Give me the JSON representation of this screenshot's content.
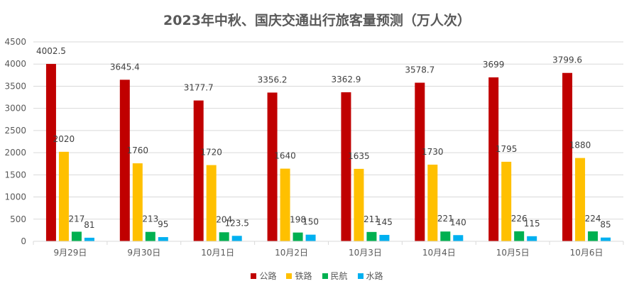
{
  "chart_data": {
    "type": "bar",
    "title": "2023年中秋、国庆交通出行旅客量预测（万人次）",
    "categories": [
      "9月29日",
      "9月30日",
      "10月1日",
      "10月2日",
      "10月3日",
      "10月4日",
      "10月5日",
      "10月6日"
    ],
    "series": [
      {
        "name": "公路",
        "color": "#C00000",
        "values": [
          4002.5,
          3645.4,
          3177.7,
          3356.2,
          3362.9,
          3578.7,
          3699,
          3799.6
        ],
        "labels": [
          "4002.5",
          "3645.4",
          "3177.7",
          "3356.2",
          "3362.9",
          "3578.7",
          "3699",
          "3799.6"
        ]
      },
      {
        "name": "铁路",
        "color": "#FFC000",
        "values": [
          2020,
          1760,
          1720,
          1640,
          1635,
          1730,
          1795,
          1880
        ],
        "labels": [
          "2020",
          "1760",
          "1720",
          "1640",
          "1635",
          "1730",
          "1795",
          "1880"
        ]
      },
      {
        "name": "民航",
        "color": "#00B050",
        "values": [
          217,
          213,
          204,
          198,
          211,
          221,
          226,
          224
        ],
        "labels": [
          "217",
          "213",
          "204",
          "198",
          "211",
          "221",
          "226",
          "224"
        ]
      },
      {
        "name": "水路",
        "color": "#00B0F0",
        "values": [
          81,
          95,
          123.5,
          150,
          145,
          140,
          115,
          85
        ],
        "labels": [
          "81",
          "95",
          "123.5",
          "150",
          "145",
          "140",
          "115",
          "85"
        ]
      }
    ],
    "yticks": [
      "0",
      "500",
      "1000",
      "1500",
      "2000",
      "2500",
      "3000",
      "3500",
      "4000",
      "4500"
    ],
    "ylim": [
      0,
      4500
    ],
    "grid": true,
    "legend": "bottom"
  }
}
